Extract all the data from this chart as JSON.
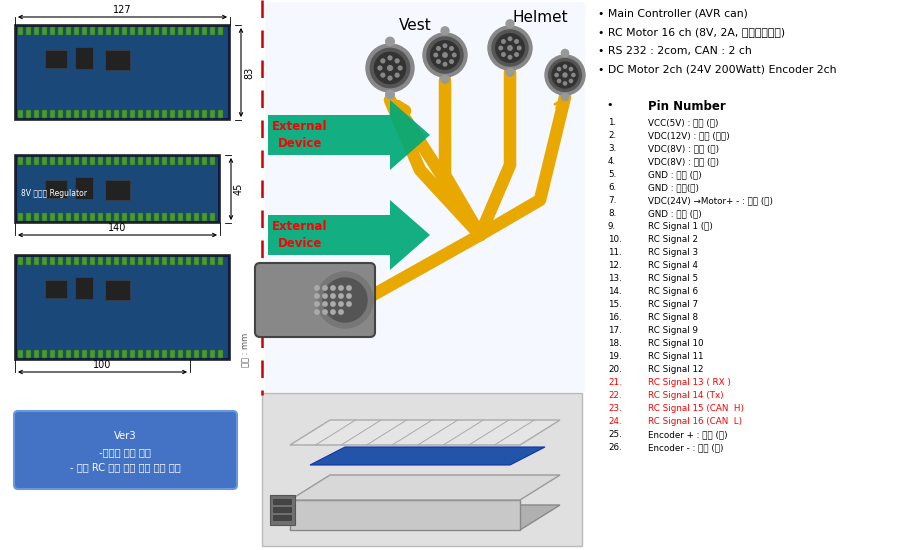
{
  "bg_color": "#ffffff",
  "bullet_items": [
    "Main Controller (AVR can)",
    "RC Motor 16 ch (8V, 2A, 독립전원공급)",
    "RS 232 : 2com, CAN : 2 ch",
    "DC Motor 2ch (24V 200Watt) Encoder 2ch"
  ],
  "pin_header": "Pin Number",
  "pin_entries": [
    [
      "1.",
      "VCC(5V) : 빨간 (중)"
    ],
    [
      "2.",
      "VDC(12V) : 노란 (중간)"
    ],
    [
      "3.",
      "VDC(8V) : 녹색 (대)"
    ],
    [
      "4.",
      "VDC(8V) : 녹색 (대)"
    ],
    [
      "5.",
      "GND : 검정 (대)"
    ],
    [
      "6.",
      "GND : 검정(대)"
    ],
    [
      "7.",
      "VDC(24V) →Motor+ - : 파란 (대)"
    ],
    [
      "8.",
      "GND : 검정 (대)"
    ],
    [
      "9.",
      "RC Signal 1 (소)"
    ],
    [
      "10.",
      "RC Signal 2"
    ],
    [
      "11.",
      "RC Signal 3"
    ],
    [
      "12.",
      "RC Signal 4"
    ],
    [
      "13.",
      "RC Signal 5"
    ],
    [
      "14.",
      "RC Signal 6"
    ],
    [
      "15.",
      "RC Signal 7"
    ],
    [
      "16.",
      "RC Signal 8"
    ],
    [
      "17.",
      "RC Signal 9"
    ],
    [
      "18.",
      "RC Signal 10"
    ],
    [
      "19.",
      "RC Signal 11"
    ],
    [
      "20.",
      "RC Signal 12"
    ],
    [
      "21.",
      "RC Signal 13 ( RX )"
    ],
    [
      "22.",
      "RC Signal 14 (Tx)"
    ],
    [
      "23.",
      "RC Signal 15 (CAN  H)"
    ],
    [
      "24.",
      "RC Signal 16 (CAN  L)"
    ],
    [
      "25.",
      "Encoder + : 녹색 (소)"
    ],
    [
      "26.",
      "Encoder - : 검정 (소)"
    ]
  ],
  "red_pin_indices": [
    20,
    21,
    22,
    23
  ],
  "ver3_text": "Ver3\n-사이즈 문제 해결\n- 다중 RC 모터 전원 공급 문제 해결",
  "ver3_box_color": "#4472C4",
  "ver3_text_color": "#ffffff",
  "label_vest": "Vest",
  "label_helmet": "Helmet",
  "label_ext1": "External\nDevice",
  "label_ext2": "External\nDevice",
  "arrow_green": "#00a878",
  "cable_color": "#e8a800",
  "dim_color": "#000000",
  "unit_label": "단위 : mm",
  "dim_127": "127",
  "dim_140": "140",
  "dim_100": "100",
  "dim_83": "83",
  "dim_45": "45",
  "divider_color": "#cc0000",
  "board1_bg": "#1a3870",
  "board1_pcb": "#1e5c8a",
  "board2_bg": "#1a3870",
  "board2_pcb": "#1e5c8a",
  "board3_bg": "#1a3870",
  "board3_pcb": "#1e5c8a"
}
